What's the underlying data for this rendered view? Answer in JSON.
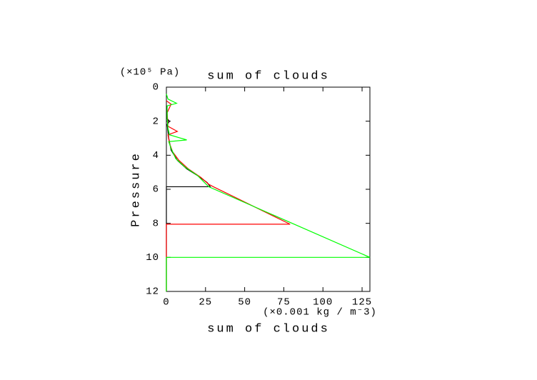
{
  "chart_data": {
    "type": "line",
    "title": "sum of clouds",
    "x_label": "sum of clouds",
    "y_label": "Pressure",
    "y_unit": "(×10⁵ Pa)",
    "x_unit": "(×0.001 kg / m⁻3)",
    "xlim": [
      0,
      130
    ],
    "xticks": [
      0,
      25,
      50,
      75,
      100,
      125
    ],
    "ylim": [
      12,
      0
    ],
    "yticks": [
      0,
      2,
      4,
      6,
      8,
      10,
      12
    ],
    "series": [
      {
        "color": "#000000",
        "x": [
          0,
          0,
          28,
          26,
          20,
          13,
          7,
          3,
          1.5,
          0.5,
          2,
          0
        ],
        "values": [
          12,
          5.85,
          5.85,
          5.6,
          5.2,
          4.8,
          4.3,
          3.7,
          3.0,
          2.2,
          2.0,
          1.8
        ]
      },
      {
        "color": "#ff0000",
        "x": [
          0,
          0,
          79,
          30,
          27,
          22,
          14,
          8,
          4,
          2,
          1,
          7,
          1,
          0.5,
          3,
          0
        ],
        "values": [
          12,
          8.05,
          8.05,
          5.85,
          5.7,
          5.3,
          4.8,
          4.3,
          3.8,
          3.3,
          2.8,
          2.6,
          2.3,
          1.5,
          1.0,
          0.8
        ]
      },
      {
        "color": "#00ff00",
        "x": [
          0,
          0,
          130,
          27,
          20,
          12,
          6,
          3,
          1.5,
          13,
          2,
          1,
          0.5,
          0.5,
          6.5,
          1,
          0
        ],
        "values": [
          12,
          10,
          10,
          5.85,
          5.2,
          4.7,
          4.2,
          3.6,
          3.2,
          3.1,
          2.8,
          2.4,
          1.8,
          1.1,
          0.95,
          0.7,
          0.4
        ]
      }
    ]
  }
}
